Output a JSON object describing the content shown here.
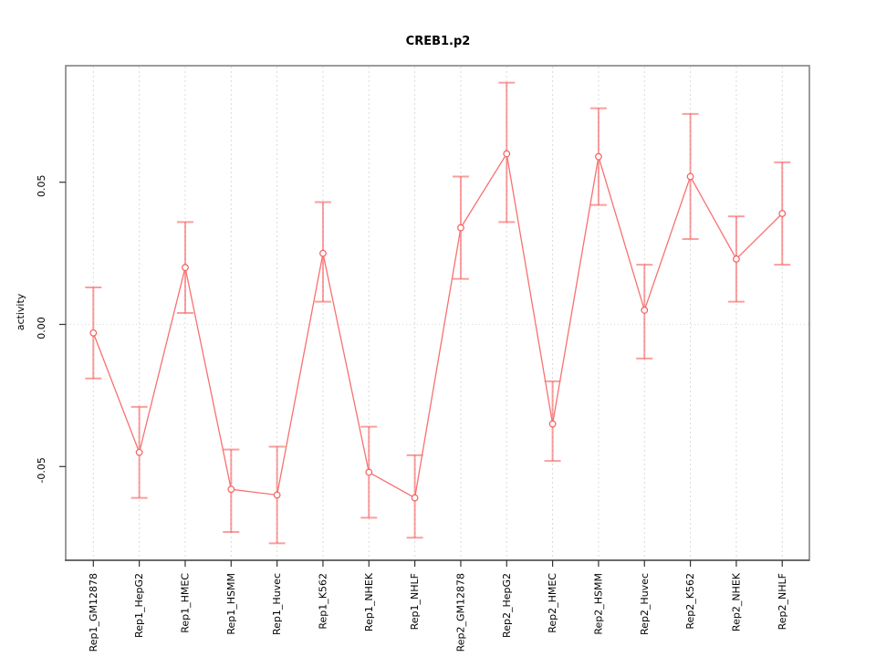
{
  "window": {
    "background": "#ffffff"
  },
  "chart_data": {
    "type": "line",
    "title": "CREB1.p2",
    "xlabel": "",
    "ylabel": "activity",
    "legend_position": "none",
    "grid": {
      "vertical_dashed_per_category": true,
      "horizontal_dotted_zero_line": true
    },
    "categories": [
      "Rep1_GM12878",
      "Rep1_HepG2",
      "Rep1_HMEC",
      "Rep1_HSMM",
      "Rep1_Huvec",
      "Rep1_K562",
      "Rep1_NHEK",
      "Rep1_NHLF",
      "Rep2_GM12878",
      "Rep2_HepG2",
      "Rep2_HMEC",
      "Rep2_HSMM",
      "Rep2_Huvec",
      "Rep2_K562",
      "Rep2_NHEK",
      "Rep2_NHLF"
    ],
    "series": [
      {
        "name": "activity",
        "marker": "open-circle",
        "values": [
          -0.003,
          -0.045,
          0.02,
          -0.058,
          -0.06,
          0.025,
          -0.052,
          -0.061,
          0.034,
          0.06,
          -0.035,
          0.059,
          0.005,
          0.052,
          0.023,
          0.039
        ],
        "error_lower": [
          -0.019,
          -0.061,
          0.004,
          -0.073,
          -0.077,
          0.008,
          -0.068,
          -0.075,
          0.016,
          0.036,
          -0.048,
          0.042,
          -0.012,
          0.03,
          0.008,
          0.021
        ],
        "error_upper": [
          0.013,
          -0.029,
          0.036,
          -0.044,
          -0.043,
          0.043,
          -0.036,
          -0.046,
          0.052,
          0.085,
          -0.02,
          0.076,
          0.021,
          0.074,
          0.038,
          0.057
        ]
      }
    ],
    "yticks": [
      0.05,
      0.0,
      -0.05
    ],
    "ytick_labels": [
      "0.05",
      "0.00",
      "-0.05"
    ],
    "ylim": [
      -0.0835,
      0.0915
    ],
    "colors": {
      "series_line": "#f87070",
      "marker_stroke": "#f55e5e",
      "marker_fill": "#ffffff",
      "error_bar": "rgba(246,93,93,0.60)",
      "grid": "#d9d9d9",
      "axis_box": "#8a8a8a",
      "axis_line": "#444444",
      "tick": "#333333",
      "text": "#000000"
    }
  }
}
